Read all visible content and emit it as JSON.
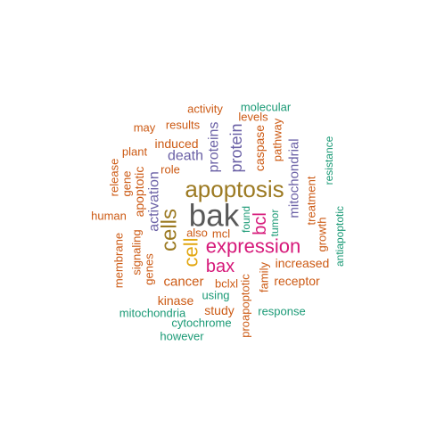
{
  "chart_data": {
    "type": "wordcloud",
    "title": "",
    "palette": {
      "dark_gray": "#595959",
      "gold": "#9c7a22",
      "magenta": "#d6197a",
      "purple": "#6b61a6",
      "orange": "#cc5a14",
      "teal": "#1b9a76",
      "yellow": "#e2a711"
    },
    "words": [
      {
        "text": "bak",
        "weight": 100,
        "color": "dark_gray",
        "rotated": false
      },
      {
        "text": "apoptosis",
        "weight": 72,
        "color": "gold",
        "rotated": false
      },
      {
        "text": "cells",
        "weight": 62,
        "color": "gold",
        "rotated": true
      },
      {
        "text": "expression",
        "weight": 60,
        "color": "magenta",
        "rotated": false
      },
      {
        "text": "cell",
        "weight": 58,
        "color": "yellow",
        "rotated": true
      },
      {
        "text": "bcl",
        "weight": 50,
        "color": "magenta",
        "rotated": true
      },
      {
        "text": "bax",
        "weight": 50,
        "color": "magenta",
        "rotated": false
      },
      {
        "text": "protein",
        "weight": 44,
        "color": "purple",
        "rotated": true
      },
      {
        "text": "proteins",
        "weight": 40,
        "color": "purple",
        "rotated": true
      },
      {
        "text": "death",
        "weight": 40,
        "color": "purple",
        "rotated": false
      },
      {
        "text": "activation",
        "weight": 36,
        "color": "purple",
        "rotated": true
      },
      {
        "text": "mitochondrial",
        "weight": 34,
        "color": "purple",
        "rotated": true
      },
      {
        "text": "caspase",
        "weight": 30,
        "color": "orange",
        "rotated": true
      },
      {
        "text": "cancer",
        "weight": 30,
        "color": "orange",
        "rotated": false
      },
      {
        "text": "apoptotic",
        "weight": 28,
        "color": "orange",
        "rotated": true
      },
      {
        "text": "induced",
        "weight": 28,
        "color": "orange",
        "rotated": false
      },
      {
        "text": "increased",
        "weight": 28,
        "color": "orange",
        "rotated": false
      },
      {
        "text": "receptor",
        "weight": 28,
        "color": "orange",
        "rotated": false
      },
      {
        "text": "pathway",
        "weight": 26,
        "color": "orange",
        "rotated": true
      },
      {
        "text": "treatment",
        "weight": 26,
        "color": "orange",
        "rotated": true
      },
      {
        "text": "proapoptotic",
        "weight": 26,
        "color": "orange",
        "rotated": true
      },
      {
        "text": "signaling",
        "weight": 26,
        "color": "orange",
        "rotated": true
      },
      {
        "text": "kinase",
        "weight": 26,
        "color": "orange",
        "rotated": false
      },
      {
        "text": "study",
        "weight": 26,
        "color": "orange",
        "rotated": false
      },
      {
        "text": "human",
        "weight": 24,
        "color": "orange",
        "rotated": false
      },
      {
        "text": "membrane",
        "weight": 24,
        "color": "orange",
        "rotated": true
      },
      {
        "text": "genes",
        "weight": 24,
        "color": "orange",
        "rotated": true
      },
      {
        "text": "also",
        "weight": 24,
        "color": "orange",
        "rotated": false
      },
      {
        "text": "growth",
        "weight": 24,
        "color": "orange",
        "rotated": true
      },
      {
        "text": "family",
        "weight": 24,
        "color": "orange",
        "rotated": true
      },
      {
        "text": "results",
        "weight": 24,
        "color": "orange",
        "rotated": false
      },
      {
        "text": "levels",
        "weight": 24,
        "color": "orange",
        "rotated": false
      },
      {
        "text": "activity",
        "weight": 24,
        "color": "orange",
        "rotated": false
      },
      {
        "text": "may",
        "weight": 24,
        "color": "orange",
        "rotated": false
      },
      {
        "text": "plant",
        "weight": 24,
        "color": "orange",
        "rotated": false
      },
      {
        "text": "role",
        "weight": 24,
        "color": "orange",
        "rotated": false
      },
      {
        "text": "release",
        "weight": 24,
        "color": "orange",
        "rotated": true
      },
      {
        "text": "gene",
        "weight": 24,
        "color": "orange",
        "rotated": true
      },
      {
        "text": "mcl",
        "weight": 24,
        "color": "orange",
        "rotated": false
      },
      {
        "text": "bclxl",
        "weight": 24,
        "color": "orange",
        "rotated": false
      },
      {
        "text": "tumor",
        "weight": 22,
        "color": "teal",
        "rotated": true
      },
      {
        "text": "found",
        "weight": 22,
        "color": "teal",
        "rotated": true
      },
      {
        "text": "molecular",
        "weight": 22,
        "color": "teal",
        "rotated": false
      },
      {
        "text": "resistance",
        "weight": 22,
        "color": "teal",
        "rotated": true
      },
      {
        "text": "antiapoptotic",
        "weight": 22,
        "color": "teal",
        "rotated": true
      },
      {
        "text": "using",
        "weight": 22,
        "color": "teal",
        "rotated": false
      },
      {
        "text": "mitochondria",
        "weight": 22,
        "color": "teal",
        "rotated": false
      },
      {
        "text": "cytochrome",
        "weight": 22,
        "color": "teal",
        "rotated": false
      },
      {
        "text": "however",
        "weight": 22,
        "color": "teal",
        "rotated": false
      },
      {
        "text": "response",
        "weight": 22,
        "color": "teal",
        "rotated": false
      }
    ]
  }
}
